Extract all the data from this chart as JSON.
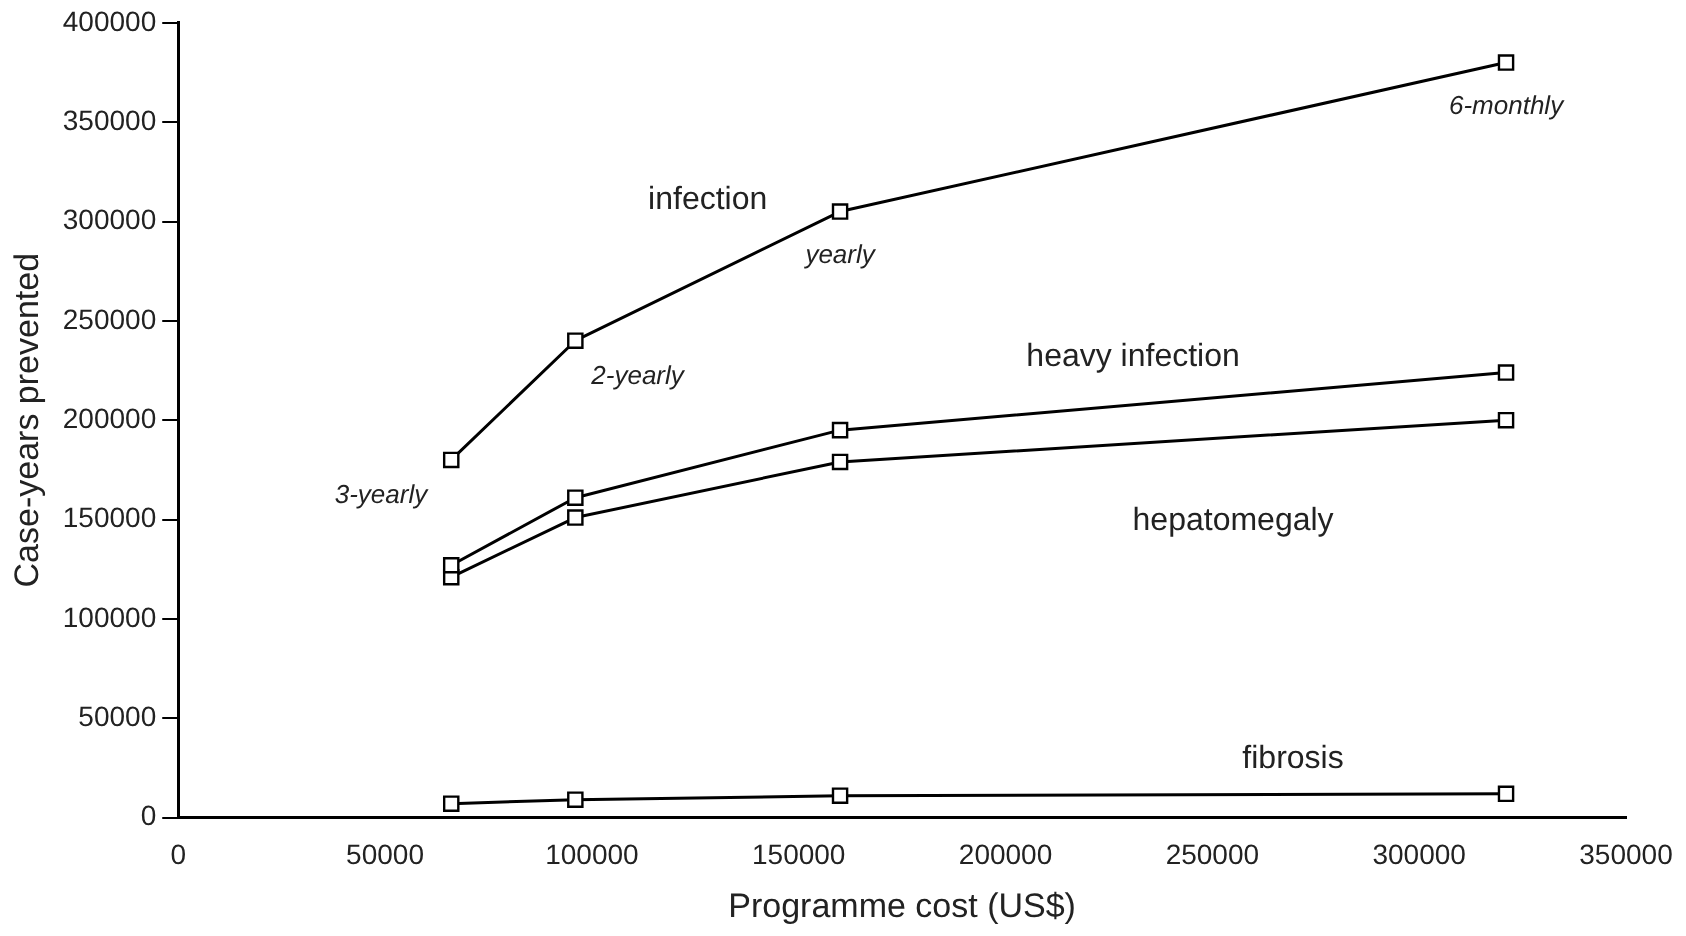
{
  "chart_data": {
    "type": "line",
    "xlabel": "Programme cost (US$)",
    "ylabel": "Case-years prevented",
    "x": [
      66000,
      96000,
      160000,
      321000
    ],
    "series": [
      {
        "name": "infection",
        "color": "#000000",
        "values": [
          180000,
          240000,
          305000,
          380000
        ]
      },
      {
        "name": "heavy infection",
        "color": "#000000",
        "values": [
          127000,
          161000,
          195000,
          224000
        ]
      },
      {
        "name": "hepatomegaly",
        "color": "#000000",
        "values": [
          121000,
          151000,
          179000,
          200000
        ]
      },
      {
        "name": "fibrosis",
        "color": "#000000",
        "values": [
          7000,
          9000,
          11000,
          12000
        ]
      }
    ],
    "annotations": [
      {
        "text": "3-yearly",
        "x": 66000,
        "y": 180000
      },
      {
        "text": "2-yearly",
        "x": 96000,
        "y": 240000
      },
      {
        "text": "yearly",
        "x": 160000,
        "y": 305000
      },
      {
        "text": "6-monthly",
        "x": 321000,
        "y": 380000
      }
    ],
    "xlim": [
      0,
      350000
    ],
    "xticks": [
      0,
      50000,
      100000,
      150000,
      200000,
      250000,
      300000,
      350000
    ],
    "ylim": [
      0,
      400000
    ],
    "yticks": [
      0,
      50000,
      100000,
      150000,
      200000,
      250000,
      300000,
      350000,
      400000
    ],
    "grid": false,
    "legend": false,
    "marker": "square",
    "line_style": "solid"
  }
}
